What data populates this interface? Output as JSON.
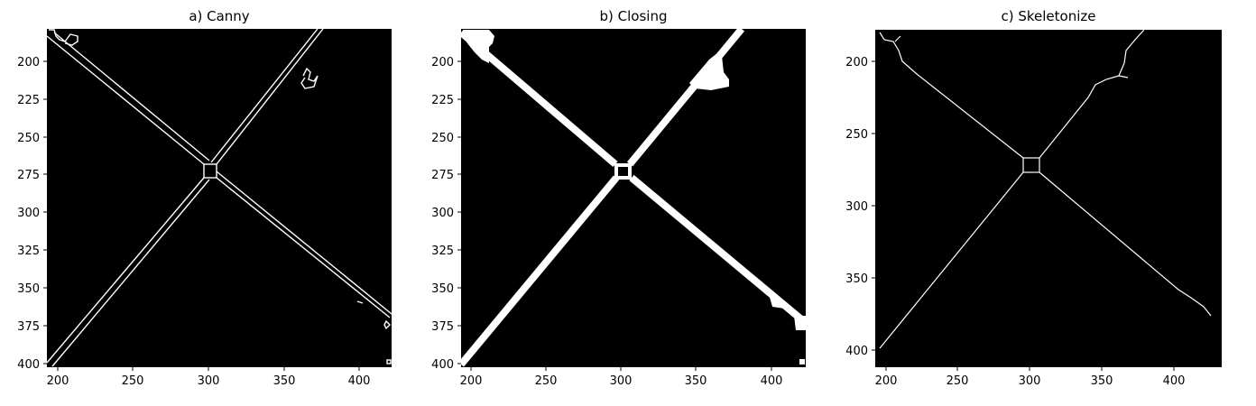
{
  "figure": {
    "background": "#ffffff",
    "image_background": "#000000",
    "line_color": "#ffffff",
    "panels": [
      {
        "id": "a",
        "title": "a) Canny",
        "style": "double-edge-outline",
        "x_ticks": [
          "200",
          "250",
          "300",
          "350",
          "400"
        ],
        "y_ticks": [
          "200",
          "225",
          "250",
          "275",
          "300",
          "325",
          "350",
          "375",
          "400"
        ],
        "xlim": [
          190,
          421
        ],
        "ylim": [
          401,
          179
        ]
      },
      {
        "id": "b",
        "title": "b) Closing",
        "style": "filled-thick-lines",
        "x_ticks": [
          "200",
          "250",
          "300",
          "350",
          "400"
        ],
        "y_ticks": [
          "200",
          "225",
          "250",
          "275",
          "300",
          "325",
          "350",
          "375",
          "400"
        ],
        "xlim": [
          190,
          421
        ],
        "ylim": [
          401,
          179
        ]
      },
      {
        "id": "c",
        "title": "c) Skeletonize",
        "style": "thin-skeleton",
        "x_ticks": [
          "200",
          "250",
          "300",
          "350",
          "400"
        ],
        "y_ticks": [
          "200",
          "250",
          "300",
          "350",
          "400"
        ],
        "xlim": [
          190,
          432
        ],
        "ylim": [
          411,
          177
        ]
      }
    ]
  }
}
